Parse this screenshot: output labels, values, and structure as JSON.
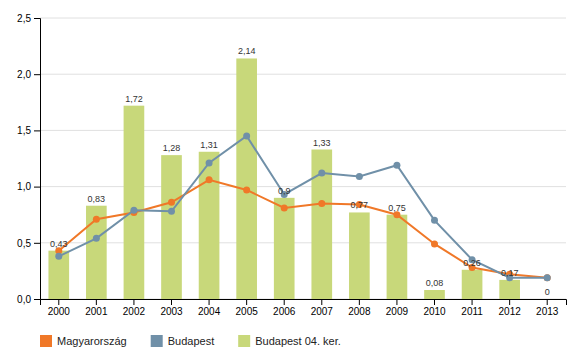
{
  "chart_data": {
    "type": "bar",
    "categories": [
      "2000",
      "2001",
      "2002",
      "2003",
      "2004",
      "2005",
      "2006",
      "2007",
      "2008",
      "2009",
      "2010",
      "2011",
      "2012",
      "2013"
    ],
    "series": [
      {
        "name": "Magyarország",
        "type": "line",
        "color": "#f07828",
        "marker": "circle",
        "values": [
          0.43,
          0.71,
          0.77,
          0.86,
          1.06,
          0.97,
          0.81,
          0.85,
          0.84,
          0.75,
          0.49,
          0.28,
          0.22,
          0.19
        ]
      },
      {
        "name": "Budapest",
        "type": "line",
        "color": "#7090a8",
        "marker": "circle",
        "values": [
          0.38,
          0.54,
          0.79,
          0.78,
          1.21,
          1.45,
          0.93,
          1.12,
          1.09,
          1.19,
          0.7,
          0.35,
          0.19,
          0.19
        ]
      },
      {
        "name": "Budapest 04. ker.",
        "type": "bar",
        "color": "#c8d87a",
        "data_labels": true,
        "values": [
          0.43,
          0.83,
          1.72,
          1.28,
          1.31,
          2.14,
          0.9,
          1.33,
          0.77,
          0.75,
          0.08,
          0.26,
          0.17,
          0.0
        ],
        "value_labels": [
          "0,43",
          "0,83",
          "1,72",
          "1,28",
          "1,31",
          "2,14",
          "0,9",
          "1,33",
          "0,77",
          "0,75",
          "0,08",
          "0,26",
          "0,17",
          "0"
        ]
      }
    ],
    "ylim": [
      0.0,
      2.5
    ],
    "yticks": [
      {
        "value": 0.0,
        "label": "0,0"
      },
      {
        "value": 0.5,
        "label": "0,5"
      },
      {
        "value": 1.0,
        "label": "1,0"
      },
      {
        "value": 1.5,
        "label": "1,5"
      },
      {
        "value": 2.0,
        "label": "2,0"
      },
      {
        "value": 2.5,
        "label": "2,5"
      }
    ],
    "grid": true,
    "legend": "bottom"
  }
}
